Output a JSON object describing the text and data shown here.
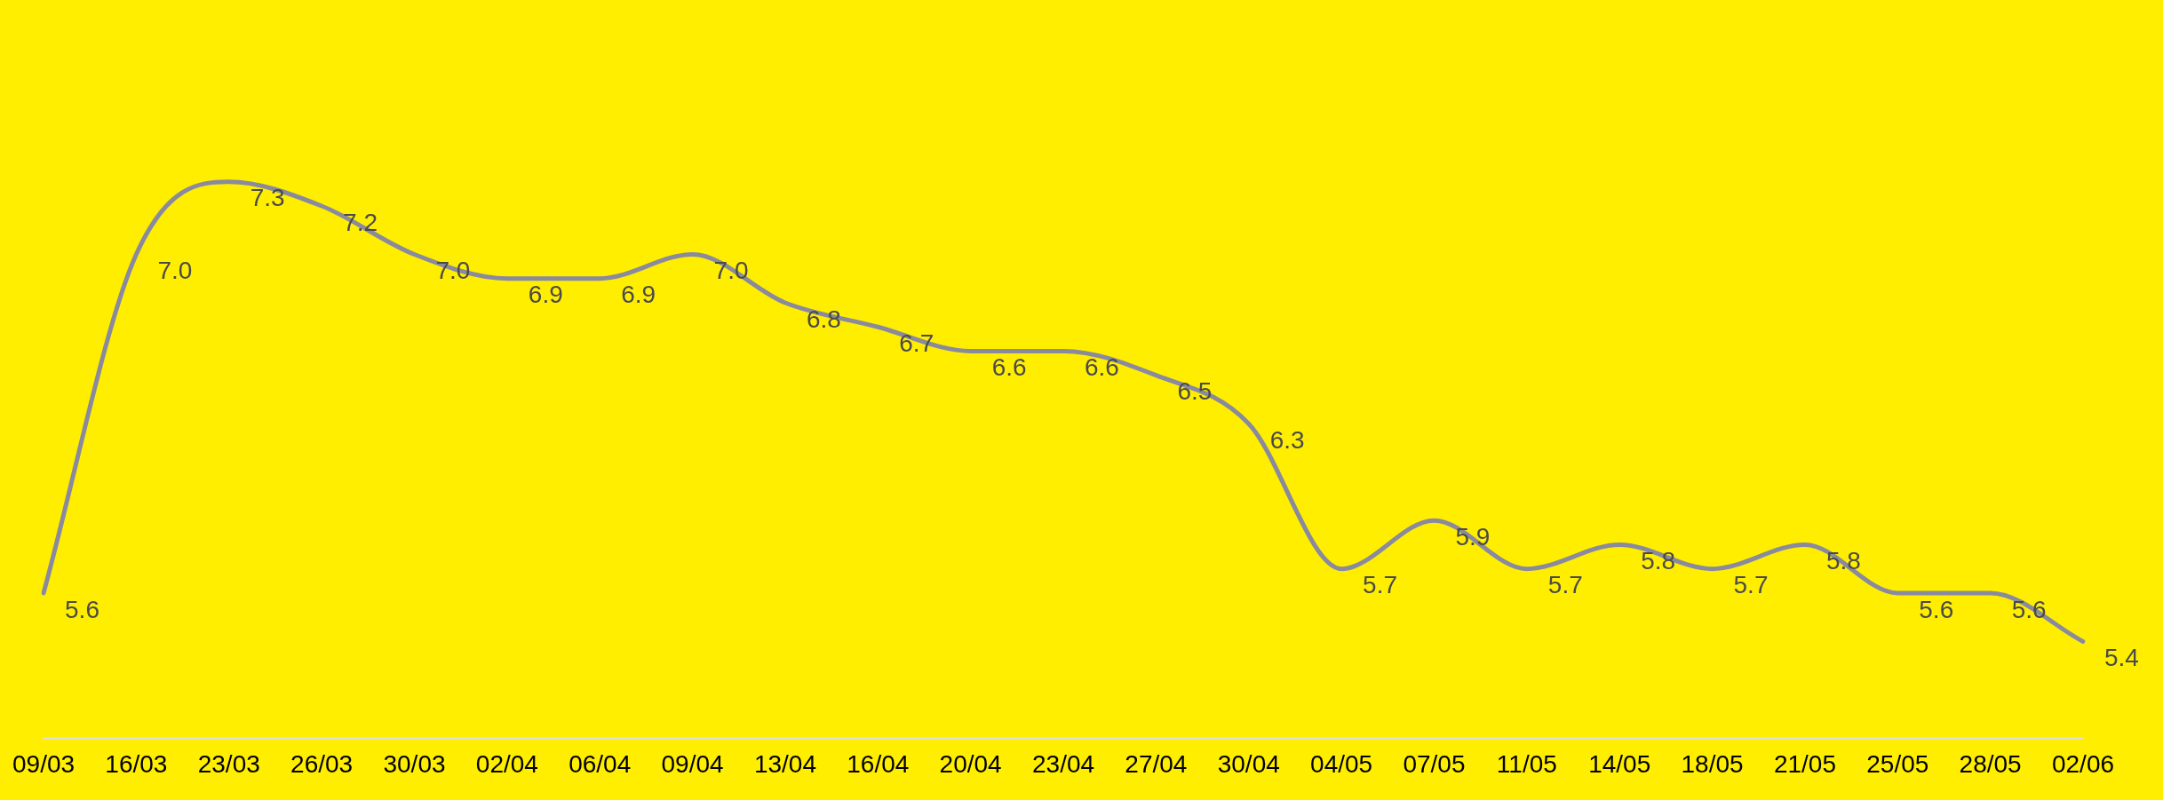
{
  "chart_data": {
    "type": "line",
    "categories": [
      "09/03",
      "16/03",
      "23/03",
      "26/03",
      "30/03",
      "02/04",
      "06/04",
      "09/04",
      "13/04",
      "16/04",
      "20/04",
      "23/04",
      "27/04",
      "30/04",
      "04/05",
      "07/05",
      "11/05",
      "14/05",
      "18/05",
      "21/05",
      "25/05",
      "28/05",
      "02/06"
    ],
    "series": [
      {
        "color": "#8a8a9e",
        "values": [
          5.6,
          7.0,
          7.3,
          7.2,
          7.0,
          6.9,
          6.9,
          7.0,
          6.8,
          6.7,
          6.6,
          6.6,
          6.5,
          6.3,
          5.7,
          5.9,
          5.7,
          5.8,
          5.7,
          5.8,
          5.6,
          5.6,
          5.4
        ],
        "value_labels": [
          "5.6",
          "7.0",
          "7.3",
          "7.2",
          "7.0",
          "6.9",
          "6.9",
          "7.0",
          "6.8",
          "6.7",
          "6.6",
          "6.6",
          "6.5",
          "6.3",
          "5.7",
          "5.9",
          "5.7",
          "5.8",
          "5.7",
          "5.8",
          "5.6",
          "5.6",
          "5.4"
        ]
      }
    ],
    "tick_labels": "x",
    "grid": false,
    "legend": false,
    "marker": "none",
    "line_style": "solid"
  }
}
